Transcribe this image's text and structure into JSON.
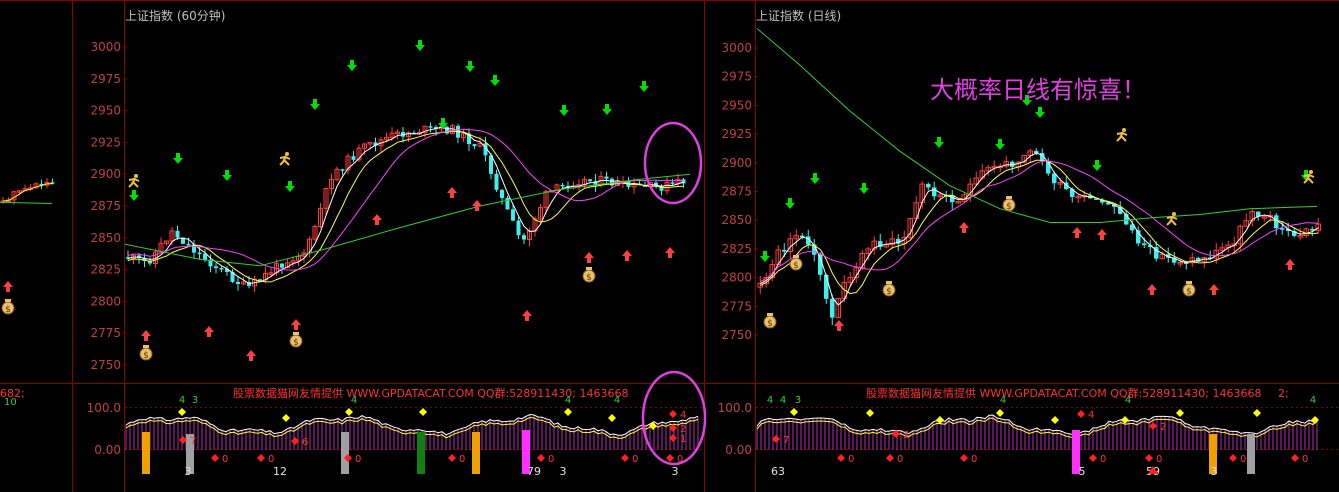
{
  "colors": {
    "background": "#000000",
    "frame": "#8b0000",
    "axis_text": "#c04040",
    "title_text": "#c0c0c0",
    "up_candle": "#ff3b3b",
    "down_candle": "#3cf0f0",
    "ma_white": "#ffffff",
    "ma_yellow": "#ffff40",
    "ma_magenta": "#ff40ff",
    "ma_green": "#30d030",
    "buy_arrow": "#ff4040",
    "sell_arrow": "#00e000",
    "annotation": "#e040e0",
    "watermark": "#ff3030"
  },
  "left_panel": {
    "title": "上证指数 (60分钟)",
    "price_ticks": [
      "3000",
      "2975",
      "2950",
      "2925",
      "2900",
      "2875",
      "2850",
      "2825",
      "2800",
      "2775",
      "2750"
    ],
    "indicator_ticks": [
      "100.0",
      "50.0",
      "0.00"
    ],
    "watermark": "股票数据猫网友情提供 WWW.GPDATACAT.COM QQ群:528911430; 1463668",
    "bottom_counts": [
      "3",
      "12",
      "79",
      "3",
      "3"
    ],
    "top_counts": [
      "4",
      "3",
      "4",
      "4",
      "4"
    ],
    "marker_texts": [
      "0",
      "0",
      "0",
      "0",
      "0",
      "0",
      "0",
      "6",
      "7",
      "4",
      "2",
      "1"
    ]
  },
  "right_panel": {
    "title": "上证指数 (日线)",
    "price_ticks": [
      "3000",
      "2975",
      "2950",
      "2925",
      "2900",
      "2875",
      "2850",
      "2825",
      "2800",
      "2775",
      "2750"
    ],
    "indicator_ticks": [
      "100.0",
      "50.0",
      "0.00"
    ],
    "watermark": "股票数据猫网友情提供 WWW.GPDATACAT.COM QQ群:528911430; 1463668",
    "watermark_tail": "2;",
    "annotation": "大概率日线有惊喜！",
    "bottom_counts": [
      "63",
      "5",
      "59",
      "3"
    ],
    "top_counts": [
      "4",
      "4",
      "3",
      "4",
      "4",
      "4"
    ],
    "marker_texts": [
      "0",
      "0",
      "0",
      "0",
      "0",
      "0",
      "0",
      "7",
      "2",
      "4",
      "2"
    ]
  },
  "far_left_stub": {
    "watermark_tail": "682;",
    "top_count": "10"
  }
}
